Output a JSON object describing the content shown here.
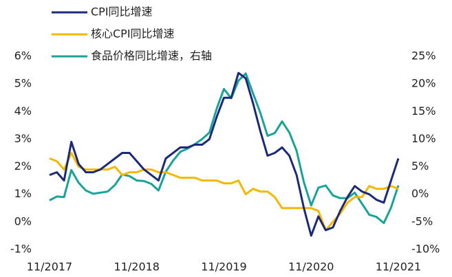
{
  "chart_data": {
    "type": "line",
    "categories": [
      "11/2017",
      null,
      null,
      null,
      null,
      null,
      null,
      null,
      null,
      null,
      null,
      null,
      "11/2018",
      null,
      null,
      null,
      null,
      null,
      null,
      null,
      null,
      null,
      null,
      null,
      "11/2019",
      null,
      null,
      null,
      null,
      null,
      null,
      null,
      null,
      null,
      null,
      null,
      "11/2020",
      null,
      null,
      null,
      null,
      null,
      null,
      null,
      null,
      null,
      null,
      null,
      "11/2021"
    ],
    "series": [
      {
        "name": "CPI同比增速",
        "color": "#1b2a78",
        "values": [
          1.7,
          1.8,
          1.5,
          2.9,
          2.1,
          1.8,
          1.8,
          1.9,
          2.1,
          2.3,
          2.5,
          2.5,
          2.2,
          1.9,
          1.7,
          1.5,
          2.3,
          2.5,
          2.7,
          2.7,
          2.8,
          2.8,
          3.0,
          3.8,
          4.5,
          4.5,
          5.4,
          5.2,
          4.3,
          3.3,
          2.4,
          2.5,
          2.7,
          2.4,
          1.7,
          0.5,
          -0.5,
          0.2,
          -0.3,
          -0.2,
          0.4,
          0.9,
          1.3,
          1.1,
          1.0,
          0.8,
          0.7,
          1.5,
          2.3
        ]
      },
      {
        "name": "核心CPI同比增速",
        "color": "#f5b800",
        "values": [
          2.3,
          2.2,
          1.9,
          2.5,
          2.0,
          1.9,
          1.9,
          1.9,
          1.9,
          2.0,
          1.7,
          1.8,
          1.8,
          1.9,
          1.9,
          1.8,
          1.8,
          1.7,
          1.6,
          1.6,
          1.6,
          1.5,
          1.5,
          1.5,
          1.4,
          1.4,
          1.5,
          1.0,
          1.2,
          1.1,
          1.1,
          0.9,
          0.5,
          0.5,
          0.5,
          0.5,
          0.5,
          0.4,
          -0.3,
          0.0,
          0.3,
          0.7,
          0.9,
          0.9,
          1.3,
          1.2,
          1.2,
          1.3,
          1.2
        ]
      },
      {
        "name": "食品价格同比增速，右轴",
        "color": "#17a398",
        "axis": "y2",
        "values": [
          -1.1,
          -0.4,
          -0.5,
          4.4,
          2.1,
          0.7,
          0.1,
          0.3,
          0.5,
          1.7,
          3.6,
          3.3,
          2.5,
          2.4,
          1.9,
          0.7,
          4.1,
          6.1,
          7.7,
          8.3,
          9.1,
          10.0,
          11.2,
          15.5,
          19.1,
          17.4,
          20.6,
          21.9,
          18.3,
          14.8,
          10.6,
          11.1,
          13.2,
          11.2,
          7.9,
          2.2,
          -2.0,
          1.2,
          1.6,
          -0.2,
          -0.7,
          -0.7,
          0.3,
          -1.7,
          -3.7,
          -4.1,
          -5.2,
          -2.4,
          1.6
        ]
      }
    ],
    "ylim": [
      -1,
      6
    ],
    "yticks": [
      {
        "value": -1,
        "label": "-1%"
      },
      {
        "value": 0,
        "label": "0%"
      },
      {
        "value": 1,
        "label": "1%"
      },
      {
        "value": 2,
        "label": "2%"
      },
      {
        "value": 3,
        "label": "3%"
      },
      {
        "value": 4,
        "label": "4%"
      },
      {
        "value": 5,
        "label": "5%"
      },
      {
        "value": 6,
        "label": "6%"
      }
    ],
    "y2lim": [
      -10,
      25
    ],
    "y2ticks": [
      {
        "value": -10,
        "label": "-10%"
      },
      {
        "value": -5,
        "label": "-5%"
      },
      {
        "value": 0,
        "label": "0%"
      },
      {
        "value": 5,
        "label": "5%"
      },
      {
        "value": 10,
        "label": "10%"
      },
      {
        "value": 15,
        "label": "15%"
      },
      {
        "value": 20,
        "label": "20%"
      },
      {
        "value": 25,
        "label": "25%"
      }
    ],
    "grid": false,
    "legend": "top-left"
  }
}
